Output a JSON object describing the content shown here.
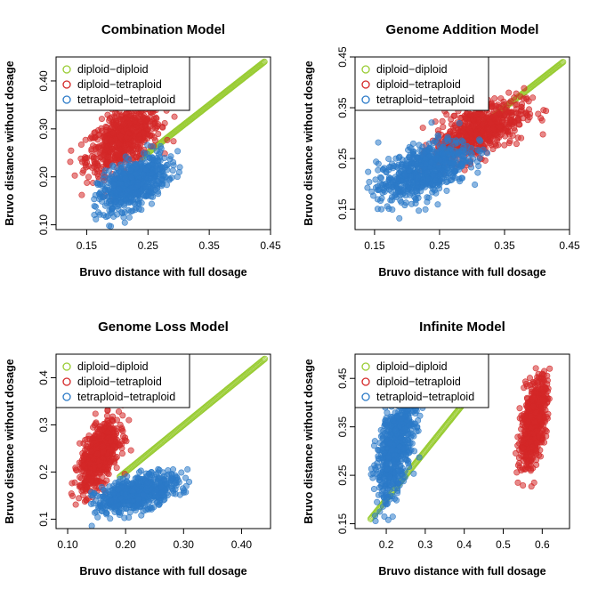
{
  "chart_data": [
    {
      "type": "scatter",
      "title": "Combination Model",
      "xlabel": "Bruvo distance with full dosage",
      "ylabel": "Bruvo distance without dosage",
      "xlim": [
        0.1,
        0.45
      ],
      "ylim": [
        0.09,
        0.45
      ],
      "xticks": [
        "0.15",
        "0.25",
        "0.35",
        "0.45"
      ],
      "yticks": [
        "0.10",
        "0.20",
        "0.30",
        "0.40"
      ],
      "legend_position": "top-left",
      "series": [
        {
          "name": "diploid−diploid",
          "color": "#99cc33",
          "shape": "diagonal-line",
          "x_range": [
            0.24,
            0.44
          ],
          "cx": 0.34,
          "cy": 0.34,
          "sx": 0,
          "sy": 0
        },
        {
          "name": "diploid−tetraploid",
          "color": "#d42828",
          "shape": "cloud",
          "x_range": [
            0.12,
            0.32
          ],
          "cx": 0.21,
          "cy": 0.28,
          "sx": 0.03,
          "sy": 0.035
        },
        {
          "name": "tetraploid−tetraploid",
          "color": "#2b7ac8",
          "shape": "cloud",
          "x_range": [
            0.16,
            0.31
          ],
          "cx": 0.225,
          "cy": 0.185,
          "sx": 0.028,
          "sy": 0.028
        }
      ]
    },
    {
      "type": "scatter",
      "title": "Genome Addition Model",
      "xlabel": "Bruvo distance with full dosage",
      "ylabel": "Bruvo distance without dosage",
      "xlim": [
        0.12,
        0.45
      ],
      "ylim": [
        0.11,
        0.45
      ],
      "xticks": [
        "0.15",
        "0.25",
        "0.35",
        "0.45"
      ],
      "yticks": [
        "0.15",
        "0.25",
        "0.35",
        "0.45"
      ],
      "legend_position": "top-left",
      "series": [
        {
          "name": "diploid−diploid",
          "color": "#99cc33",
          "shape": "diagonal-line",
          "x_range": [
            0.24,
            0.44
          ],
          "cx": 0.34,
          "cy": 0.34,
          "sx": 0,
          "sy": 0
        },
        {
          "name": "diploid−tetraploid",
          "color": "#d42828",
          "shape": "cloud",
          "x_range": [
            0.22,
            0.43
          ],
          "cx": 0.31,
          "cy": 0.305,
          "sx": 0.035,
          "sy": 0.03
        },
        {
          "name": "tetraploid−tetraploid",
          "color": "#2b7ac8",
          "shape": "cloud",
          "x_range": [
            0.13,
            0.33
          ],
          "cx": 0.225,
          "cy": 0.225,
          "sx": 0.035,
          "sy": 0.03
        }
      ]
    },
    {
      "type": "scatter",
      "title": "Genome Loss Model",
      "xlabel": "Bruvo distance with full dosage",
      "ylabel": "Bruvo distance without dosage",
      "xlim": [
        0.08,
        0.45
      ],
      "ylim": [
        0.08,
        0.45
      ],
      "xticks": [
        "0.10",
        "0.20",
        "0.30",
        "0.40"
      ],
      "yticks": [
        "0.1",
        "0.2",
        "0.3",
        "0.4"
      ],
      "legend_position": "top-left",
      "series": [
        {
          "name": "diploid−diploid",
          "color": "#99cc33",
          "shape": "diagonal-line",
          "x_range": [
            0.19,
            0.44
          ],
          "cx": 0.32,
          "cy": 0.32,
          "sx": 0,
          "sy": 0
        },
        {
          "name": "diploid−tetraploid",
          "color": "#d42828",
          "shape": "cloud",
          "x_range": [
            0.1,
            0.21
          ],
          "cx": 0.155,
          "cy": 0.235,
          "sx": 0.017,
          "sy": 0.035
        },
        {
          "name": "tetraploid−tetraploid",
          "color": "#2b7ac8",
          "shape": "cloud",
          "x_range": [
            0.14,
            0.31
          ],
          "cx": 0.22,
          "cy": 0.155,
          "sx": 0.035,
          "sy": 0.02
        }
      ]
    },
    {
      "type": "scatter",
      "title": "Infinite Model",
      "xlabel": "Bruvo distance with full dosage",
      "ylabel": "Bruvo distance without dosage",
      "xlim": [
        0.12,
        0.67
      ],
      "ylim": [
        0.14,
        0.5
      ],
      "xticks": [
        "0.2",
        "0.3",
        "0.4",
        "0.5",
        "0.6"
      ],
      "yticks": [
        "0.15",
        "0.25",
        "0.35",
        "0.45"
      ],
      "legend_position": "top-left",
      "series": [
        {
          "name": "diploid−diploid",
          "color": "#99cc33",
          "shape": "diagonal-line",
          "x_range": [
            0.16,
            0.44
          ],
          "cx": 0.3,
          "cy": 0.3,
          "sx": 0,
          "sy": 0
        },
        {
          "name": "diploid−tetraploid",
          "color": "#d42828",
          "shape": "cloud",
          "x_range": [
            0.53,
            0.62
          ],
          "cx": 0.578,
          "cy": 0.36,
          "sx": 0.017,
          "sy": 0.045
        },
        {
          "name": "tetraploid−tetraploid",
          "color": "#2b7ac8",
          "shape": "cloud",
          "x_range": [
            0.16,
            0.31
          ],
          "cx": 0.225,
          "cy": 0.31,
          "sx": 0.025,
          "sy": 0.055
        }
      ]
    }
  ]
}
